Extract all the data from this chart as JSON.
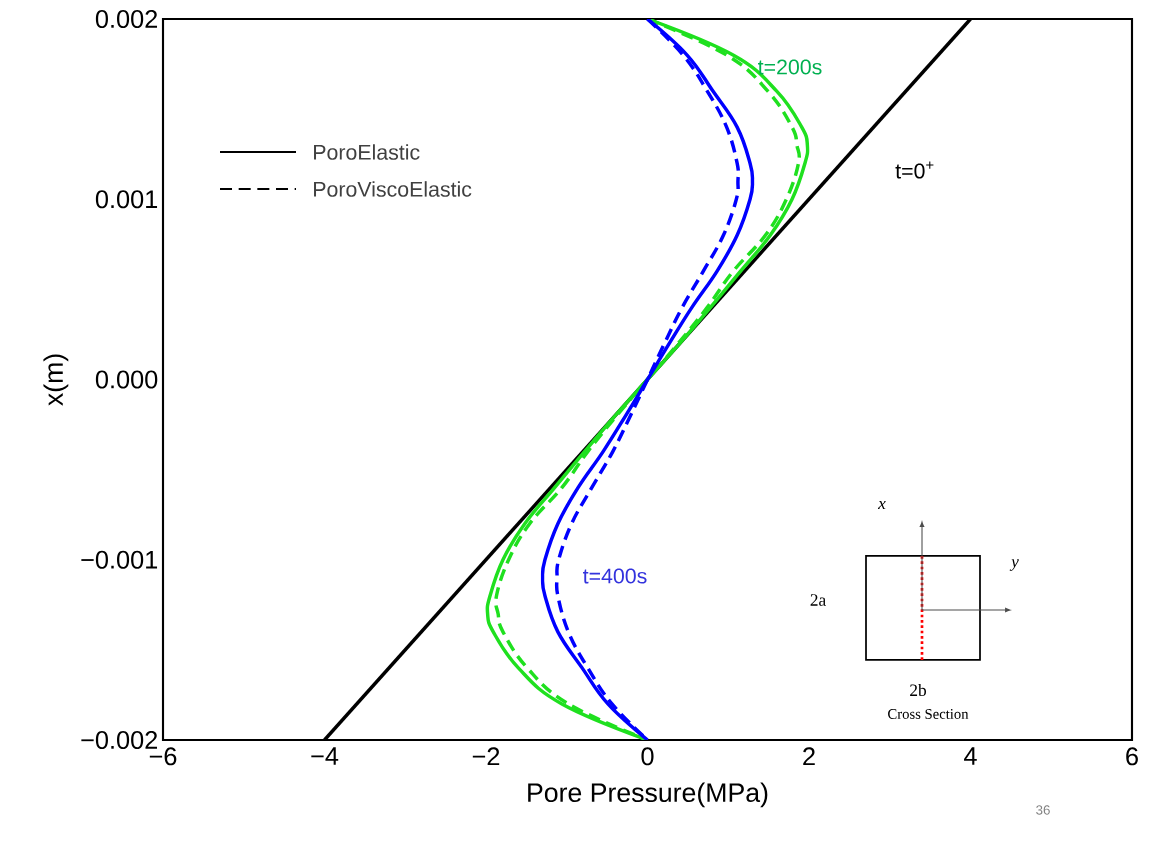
{
  "chart_data": {
    "type": "line",
    "xlabel": "Pore Pressure(MPa)",
    "ylabel": "x(m)",
    "xlim": [
      -6,
      6
    ],
    "ylim": [
      -0.002,
      0.002
    ],
    "xticks": [
      {
        "value": -6,
        "label": "−6"
      },
      {
        "value": -4,
        "label": "−4"
      },
      {
        "value": -2,
        "label": "−2"
      },
      {
        "value": 0,
        "label": "0"
      },
      {
        "value": 2,
        "label": "2"
      },
      {
        "value": 4,
        "label": "4"
      },
      {
        "value": 6,
        "label": "6"
      }
    ],
    "yticks": [
      {
        "value": -0.002,
        "label": "−0.002"
      },
      {
        "value": -0.001,
        "label": "−0.001"
      },
      {
        "value": 0,
        "label": "0.000"
      },
      {
        "value": 0.001,
        "label": "0.001"
      },
      {
        "value": 0.002,
        "label": "0.002"
      }
    ],
    "grid": false,
    "marker": "none",
    "series": [
      {
        "color": "#000000",
        "line_style": "solid",
        "x": [
          -4,
          4
        ],
        "values": [
          -0.002,
          0.002
        ]
      },
      {
        "color": "#1fe01f",
        "line_style": "solid",
        "x": [
          0,
          1.06,
          1.6,
          1.91,
          1.98,
          1.95,
          1.79,
          1.52,
          1.15,
          0.78,
          0.4,
          0,
          -0.4,
          -0.78,
          -1.15,
          -1.52,
          -1.79,
          -1.95,
          -1.98,
          -1.91,
          -1.6,
          -1.06,
          0
        ],
        "values": [
          0.002,
          0.0018,
          0.0016,
          0.0014,
          0.0013,
          0.0012,
          0.001,
          0.0008,
          0.0006,
          0.0004,
          0.0002,
          0,
          -0.0002,
          -0.0004,
          -0.0006,
          -0.0008,
          -0.001,
          -0.0012,
          -0.0013,
          -0.0014,
          -0.0016,
          -0.0018,
          -0.002
        ]
      },
      {
        "color": "#1fe01f",
        "line_style": "dashed",
        "x": [
          0,
          0.98,
          1.49,
          1.79,
          1.85,
          1.87,
          1.72,
          1.46,
          1.06,
          0.74,
          0.38,
          0,
          -0.38,
          -0.74,
          -1.06,
          -1.46,
          -1.72,
          -1.87,
          -1.85,
          -1.79,
          -1.49,
          -0.98,
          0
        ],
        "values": [
          0.002,
          0.0018,
          0.0016,
          0.0014,
          0.0013,
          0.0012,
          0.001,
          0.0008,
          0.0006,
          0.0004,
          0.0002,
          0,
          -0.0002,
          -0.0004,
          -0.0006,
          -0.0008,
          -0.001,
          -0.0012,
          -0.0013,
          -0.0014,
          -0.0016,
          -0.0018,
          -0.002
        ]
      },
      {
        "color": "#0000ff",
        "line_style": "solid",
        "x": [
          0,
          0.49,
          0.81,
          1.11,
          1.27,
          1.3,
          1.27,
          1.11,
          0.86,
          0.55,
          0.27,
          0,
          -0.27,
          -0.55,
          -0.86,
          -1.11,
          -1.27,
          -1.3,
          -1.27,
          -1.11,
          -0.81,
          -0.49,
          0
        ],
        "values": [
          0.002,
          0.0018,
          0.0016,
          0.0014,
          0.0012,
          0.0011,
          0.001,
          0.0008,
          0.0006,
          0.0004,
          0.0002,
          0,
          -0.0002,
          -0.0004,
          -0.0006,
          -0.0008,
          -0.001,
          -0.0011,
          -0.0012,
          -0.0014,
          -0.0016,
          -0.0018,
          -0.002
        ]
      },
      {
        "color": "#0000ff",
        "line_style": "dashed",
        "x": [
          0,
          0.44,
          0.74,
          0.98,
          1.11,
          1.12,
          1.1,
          0.94,
          0.69,
          0.43,
          0.21,
          0,
          -0.21,
          -0.43,
          -0.69,
          -0.94,
          -1.1,
          -1.12,
          -1.11,
          -0.98,
          -0.74,
          -0.44,
          0
        ],
        "values": [
          0.002,
          0.0018,
          0.0016,
          0.0014,
          0.0012,
          0.0011,
          0.001,
          0.0008,
          0.0006,
          0.0004,
          0.0002,
          0,
          -0.0002,
          -0.0004,
          -0.0006,
          -0.0008,
          -0.001,
          -0.0011,
          -0.0012,
          -0.0014,
          -0.0016,
          -0.0018,
          -0.002
        ]
      }
    ],
    "annotations": [
      "PoroElastic",
      "PoroViscoElastic",
      "x",
      "y",
      "2a",
      "2b",
      "Cross Section",
      "36",
      "t=200s",
      "t=400s",
      "t=0$^{+}$"
    ]
  }
}
